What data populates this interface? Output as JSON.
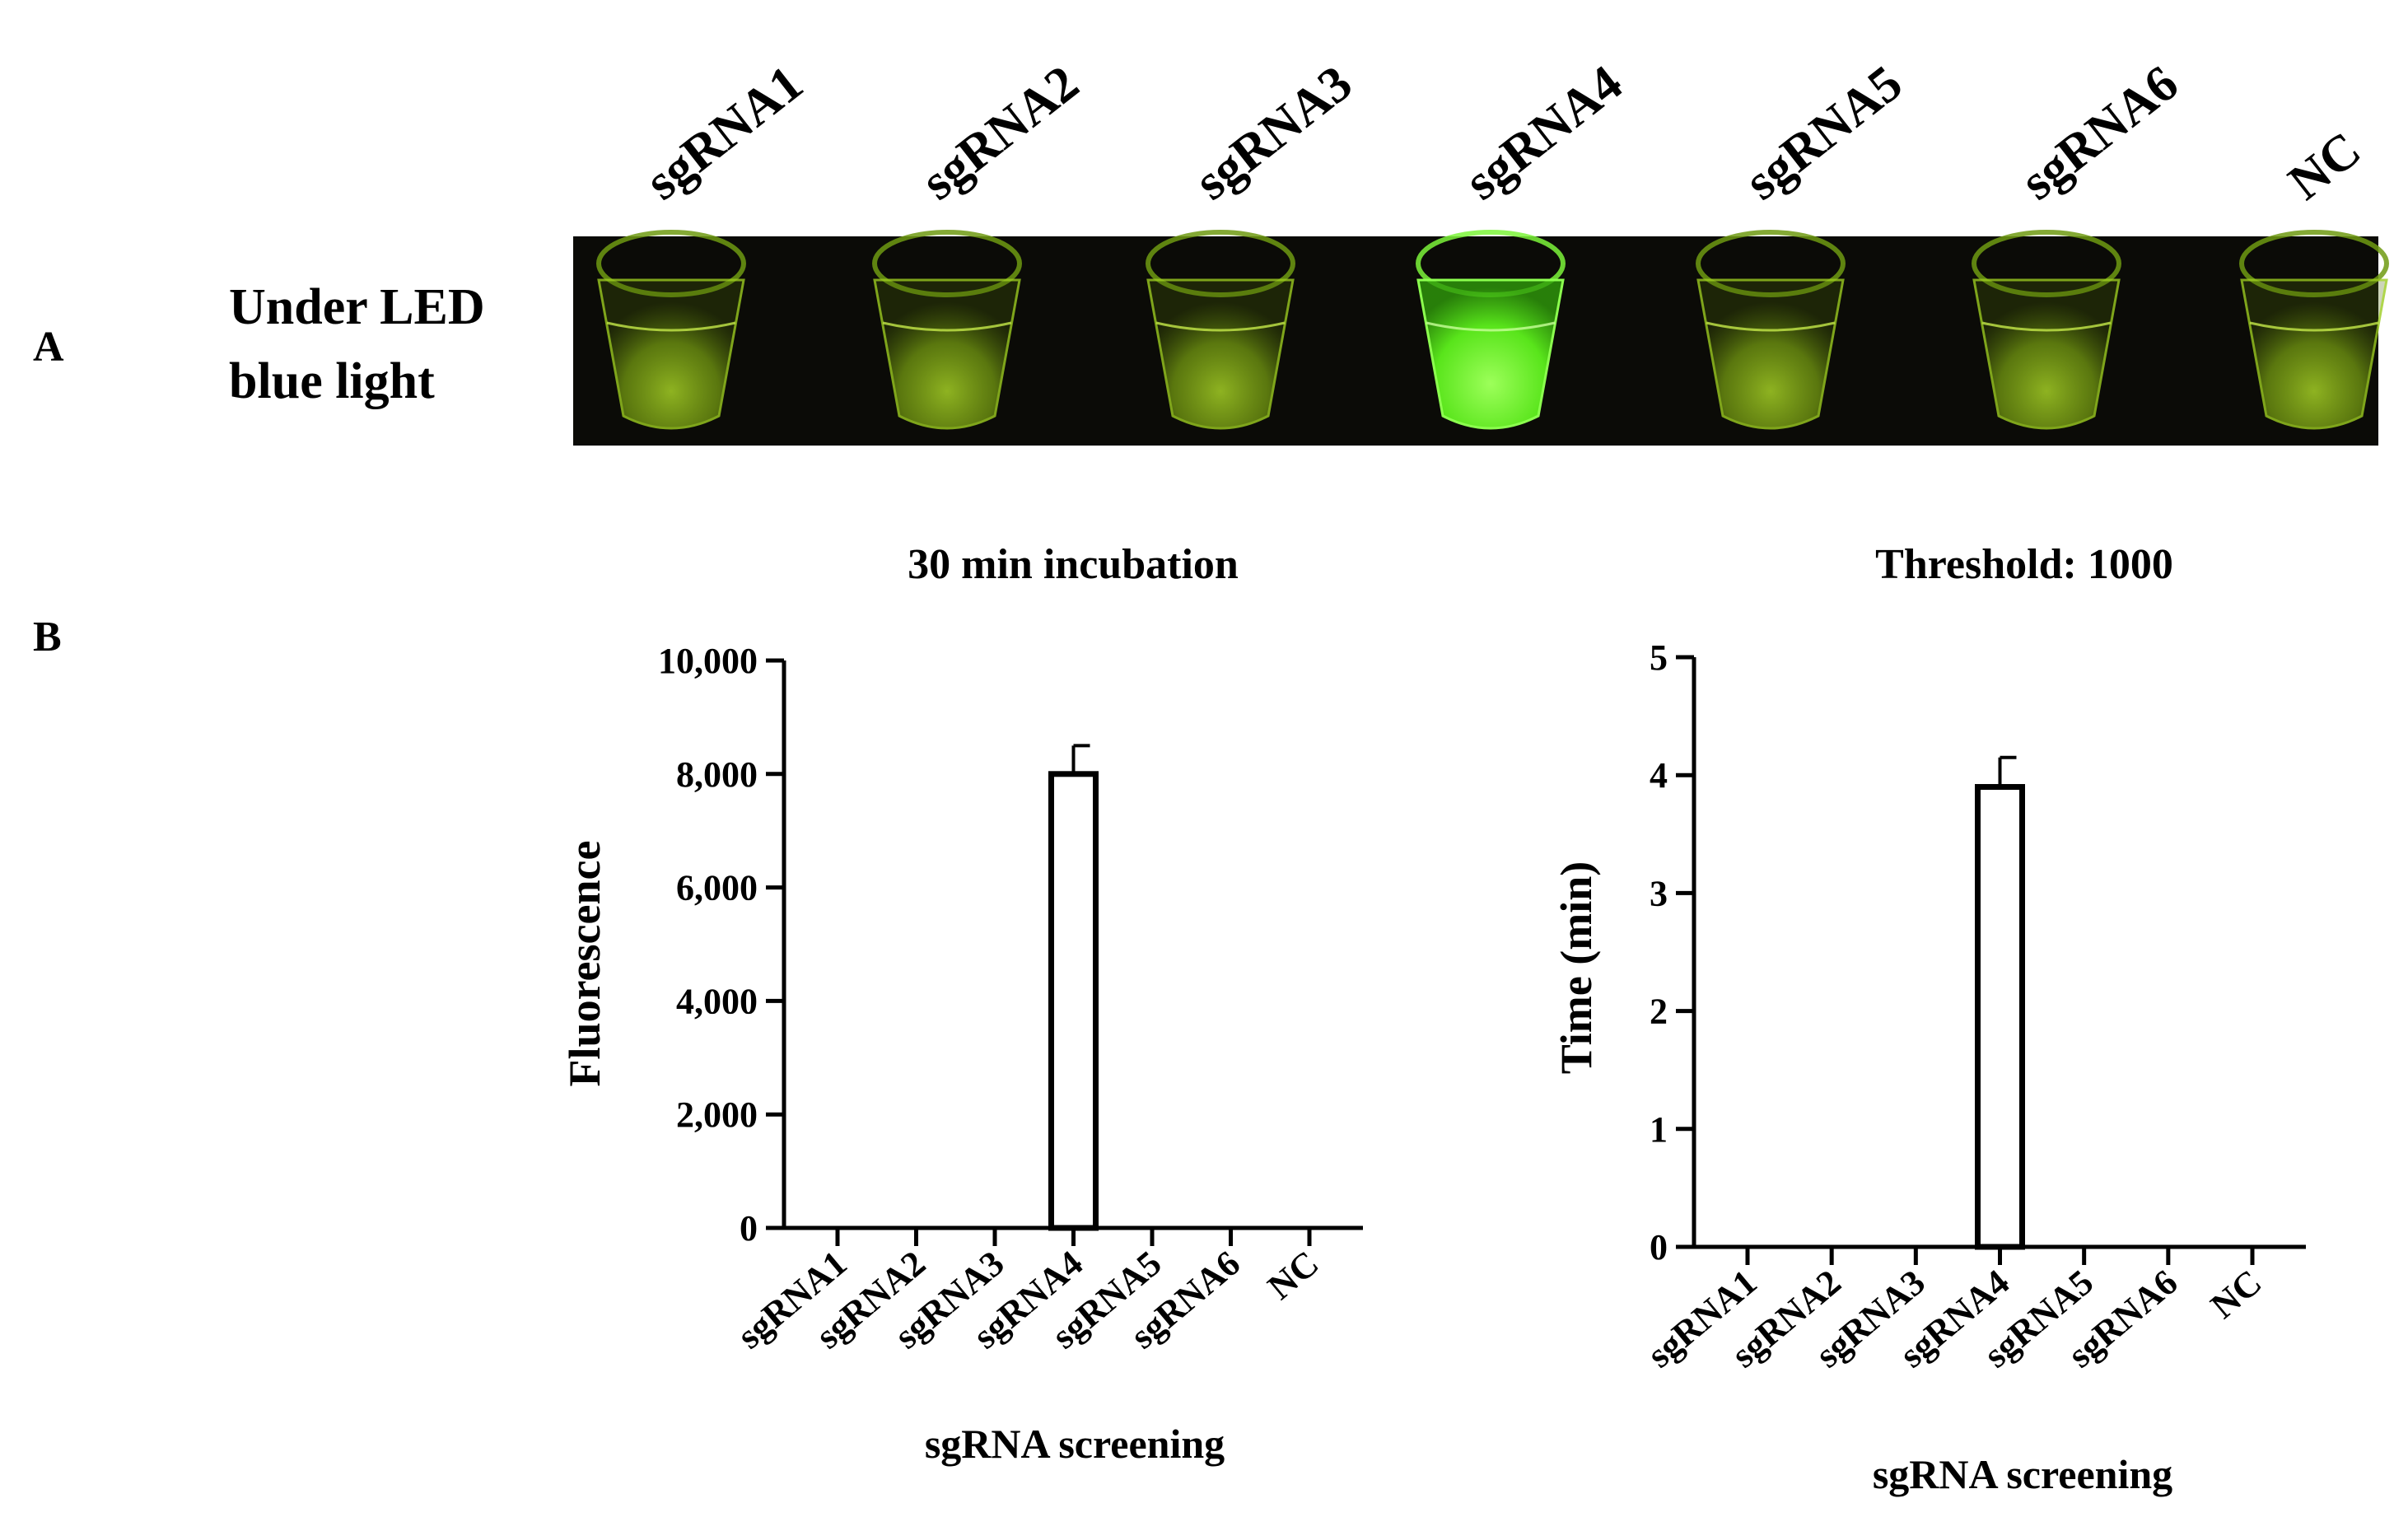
{
  "panel_a": {
    "letter": "A",
    "condition_line1": "Under LED",
    "condition_line2": "blue light",
    "tube_labels": [
      "sgRNA1",
      "sgRNA2",
      "sgRNA3",
      "sgRNA4",
      "sgRNA5",
      "sgRNA6",
      "NC"
    ],
    "tube_bright": [
      false,
      false,
      false,
      true,
      false,
      false,
      false
    ],
    "colors": {
      "background": "#0b0b07",
      "dim_glow": "#9fd21a",
      "bright_glow": "#63f41f"
    }
  },
  "panel_b": {
    "letter": "B"
  },
  "chart_data": [
    {
      "type": "bar",
      "title": "30 min incubation",
      "xlabel": "sgRNA screening",
      "ylabel": "Fluorescence",
      "categories": [
        "sgRNA1",
        "sgRNA2",
        "sgRNA3",
        "sgRNA4",
        "sgRNA5",
        "sgRNA6",
        "NC"
      ],
      "values": [
        0,
        0,
        0,
        8000,
        0,
        0,
        0
      ],
      "error": [
        0,
        0,
        0,
        500,
        0,
        0,
        0
      ],
      "ylim": [
        0,
        10000
      ],
      "yticks": [
        0,
        2000,
        4000,
        6000,
        8000,
        10000
      ],
      "ytick_labels": [
        "0",
        "2,000",
        "4,000",
        "6,000",
        "8,000",
        "10,000"
      ],
      "grid": false
    },
    {
      "type": "bar",
      "title": "Threshold: 1000",
      "xlabel": "sgRNA screening",
      "ylabel": "Time (min)",
      "categories": [
        "sgRNA1",
        "sgRNA2",
        "sgRNA3",
        "sgRNA4",
        "sgRNA5",
        "sgRNA6",
        "NC"
      ],
      "values": [
        0,
        0,
        0,
        3.9,
        0,
        0,
        0
      ],
      "error": [
        0,
        0,
        0,
        0.25,
        0,
        0,
        0
      ],
      "ylim": [
        0,
        5
      ],
      "yticks": [
        0,
        1,
        2,
        3,
        4,
        5
      ],
      "ytick_labels": [
        "0",
        "1",
        "2",
        "3",
        "4",
        "5"
      ],
      "grid": false
    }
  ]
}
